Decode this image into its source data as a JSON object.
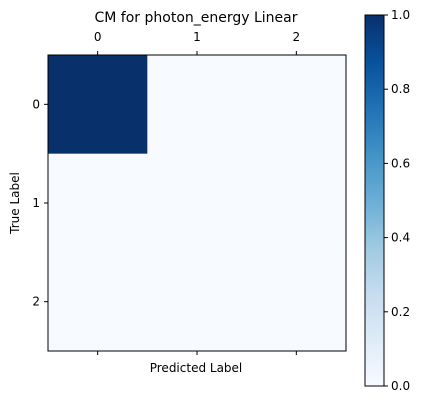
{
  "chart_data": {
    "type": "heatmap",
    "title": "CM for photon_energy Linear",
    "xlabel": "Predicted Label",
    "ylabel": "True Label",
    "x_categories": [
      "0",
      "1",
      "2"
    ],
    "y_categories": [
      "0",
      "1",
      "2"
    ],
    "values": [
      [
        1.0,
        0.0,
        0.0
      ],
      [
        0.0,
        0.0,
        0.0
      ],
      [
        0.0,
        0.0,
        0.0
      ]
    ],
    "colormap": "Blues",
    "colormap_low": "#f7fbff",
    "colormap_high": "#08306b",
    "vmin": 0.0,
    "vmax": 1.0,
    "colorbar_ticks": [
      "0.0",
      "0.2",
      "0.4",
      "0.6",
      "0.8",
      "1.0"
    ],
    "x_tick_position": "top",
    "grid": false
  }
}
